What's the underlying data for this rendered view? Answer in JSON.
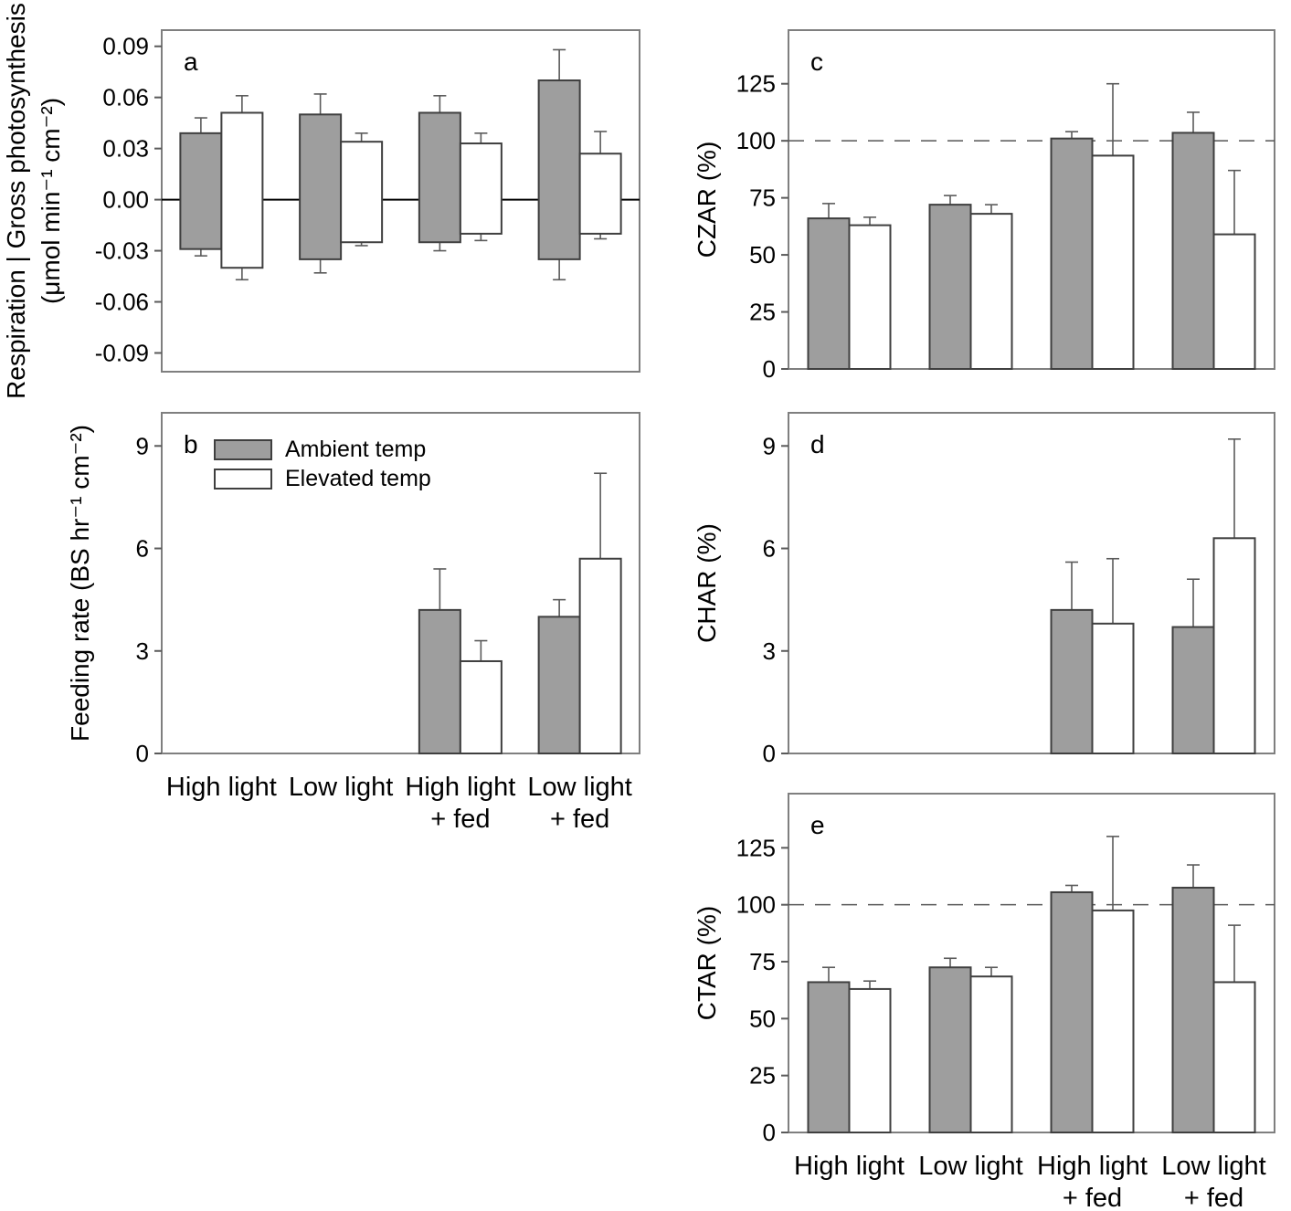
{
  "figure": {
    "categories": [
      [
        "High light"
      ],
      [
        "Low light"
      ],
      [
        "High light",
        "+ fed"
      ],
      [
        "Low light",
        "+ fed"
      ]
    ],
    "legend": {
      "items": [
        {
          "key": "ambient",
          "label": "Ambient temp"
        },
        {
          "key": "elevated",
          "label": "Elevated temp"
        }
      ]
    },
    "colors": {
      "ambient_fill": "#9e9e9e",
      "elevated_fill": "#ffffff",
      "bar_border": "#3f3f3f",
      "frame": "#7f7f7f",
      "errorbar": "#5a5a5a",
      "zero_line": "#000000",
      "refline": "#555555",
      "text": "#000000"
    }
  },
  "chart_data": [
    {
      "panel": "a",
      "type": "bar",
      "orientation": "diverging",
      "ylabel": [
        "Respiration | Gross photosynthesis",
        "(μmol min⁻¹ cm⁻²)"
      ],
      "ytick_values": [
        0.09,
        0.06,
        0.03,
        0.0,
        -0.03,
        -0.06,
        -0.09
      ],
      "ytick_labels": [
        "0.09",
        "0.06",
        "0.03",
        "0.00",
        "-0.03",
        "-0.06",
        "-0.09"
      ],
      "ylim": [
        -0.101,
        0.0995
      ],
      "zero_line": 0,
      "show_xticklabels": false,
      "series": [
        {
          "key": "ambient",
          "name": "Ambient temp",
          "up": [
            0.039,
            0.05,
            0.051,
            0.07
          ],
          "up_err": [
            0.048,
            0.062,
            0.061,
            0.088
          ],
          "down": [
            -0.029,
            -0.035,
            -0.025,
            -0.035
          ],
          "down_err": [
            -0.033,
            -0.043,
            -0.03,
            -0.047
          ]
        },
        {
          "key": "elevated",
          "name": "Elevated temp",
          "up": [
            0.051,
            0.034,
            0.033,
            0.027
          ],
          "up_err": [
            0.061,
            0.039,
            0.039,
            0.04
          ],
          "down": [
            -0.04,
            -0.025,
            -0.02,
            -0.02
          ],
          "down_err": [
            -0.047,
            -0.027,
            -0.024,
            -0.023
          ]
        }
      ]
    },
    {
      "panel": "b",
      "type": "bar",
      "ylabel": [
        "Feeding rate (BS hr⁻¹ cm⁻²)"
      ],
      "ytick_values": [
        9,
        6,
        3,
        0
      ],
      "ytick_labels": [
        "9",
        "6",
        "3",
        "0"
      ],
      "ylim": [
        0,
        9.97
      ],
      "legend": true,
      "show_xticklabels": true,
      "series": [
        {
          "key": "ambient",
          "name": "Ambient temp",
          "values": [
            null,
            null,
            4.2,
            4.0
          ],
          "err": [
            null,
            null,
            5.4,
            4.5
          ]
        },
        {
          "key": "elevated",
          "name": "Elevated temp",
          "values": [
            null,
            null,
            2.7,
            5.7
          ],
          "err": [
            null,
            null,
            3.3,
            8.2
          ]
        }
      ]
    },
    {
      "panel": "c",
      "type": "bar",
      "ylabel": [
        "CZAR (%)"
      ],
      "ytick_values": [
        125,
        100,
        75,
        50,
        25,
        0
      ],
      "ytick_labels": [
        "125",
        "100",
        "75",
        "50",
        "25",
        "0"
      ],
      "ylim": [
        0,
        148.5
      ],
      "refline": 100,
      "show_xticklabels": false,
      "series": [
        {
          "key": "ambient",
          "name": "Ambient temp",
          "values": [
            66,
            72,
            101,
            103.5
          ],
          "err": [
            72.5,
            76,
            104,
            112.5
          ]
        },
        {
          "key": "elevated",
          "name": "Elevated temp",
          "values": [
            63,
            68,
            93.5,
            59
          ],
          "err": [
            66.5,
            72,
            125,
            87
          ]
        }
      ]
    },
    {
      "panel": "d",
      "type": "bar",
      "ylabel": [
        "CHAR (%)"
      ],
      "ytick_values": [
        9,
        6,
        3,
        0
      ],
      "ytick_labels": [
        "9",
        "6",
        "3",
        "0"
      ],
      "ylim": [
        0,
        9.97
      ],
      "show_xticklabels": false,
      "series": [
        {
          "key": "ambient",
          "name": "Ambient temp",
          "values": [
            null,
            null,
            4.2,
            3.7
          ],
          "err": [
            null,
            null,
            5.6,
            5.1
          ]
        },
        {
          "key": "elevated",
          "name": "Elevated temp",
          "values": [
            null,
            null,
            3.8,
            6.3
          ],
          "err": [
            null,
            null,
            5.7,
            9.2
          ]
        }
      ]
    },
    {
      "panel": "e",
      "type": "bar",
      "ylabel": [
        "CTAR (%)"
      ],
      "ytick_values": [
        125,
        100,
        75,
        50,
        25,
        0
      ],
      "ytick_labels": [
        "125",
        "100",
        "75",
        "50",
        "25",
        "0"
      ],
      "ylim": [
        0,
        148.8
      ],
      "refline": 100,
      "show_xticklabels": true,
      "series": [
        {
          "key": "ambient",
          "name": "Ambient temp",
          "values": [
            66,
            72.5,
            105.5,
            107.5
          ],
          "err": [
            72.5,
            76.5,
            108.5,
            117.5
          ]
        },
        {
          "key": "elevated",
          "name": "Elevated temp",
          "values": [
            63,
            68.5,
            97.5,
            66
          ],
          "err": [
            66.5,
            72.5,
            130,
            91
          ]
        }
      ]
    }
  ]
}
